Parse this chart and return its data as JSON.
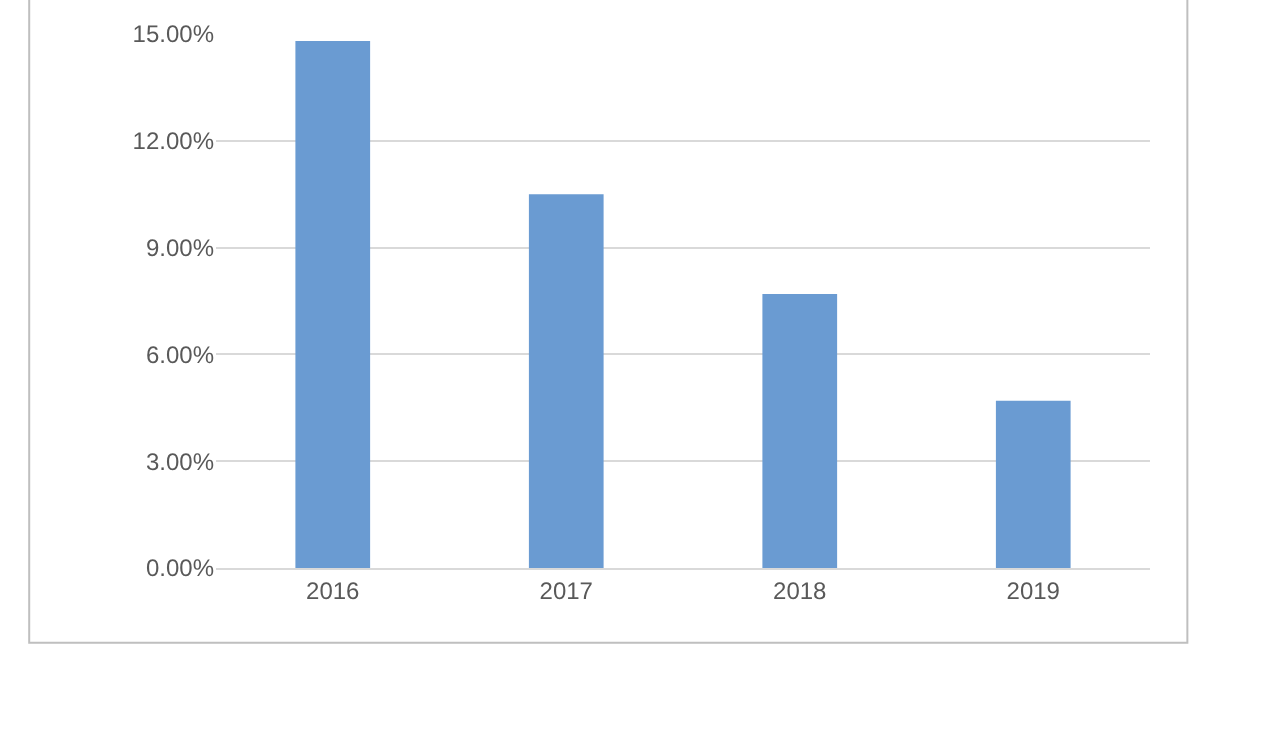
{
  "chart_data": {
    "type": "bar",
    "categories": [
      "2016",
      "2017",
      "2018",
      "2019"
    ],
    "values": [
      14.8,
      10.5,
      7.7,
      4.7
    ],
    "color": "#6a9bd2",
    "ylim": [
      0,
      15
    ],
    "yticks": [
      {
        "value": 0,
        "label": "0.00%"
      },
      {
        "value": 3,
        "label": "3.00%"
      },
      {
        "value": 6,
        "label": "6.00%"
      },
      {
        "value": 9,
        "label": "9.00%"
      },
      {
        "value": 12,
        "label": "12.00%"
      },
      {
        "value": 15,
        "label": "15.00%"
      }
    ],
    "grid": "y"
  }
}
